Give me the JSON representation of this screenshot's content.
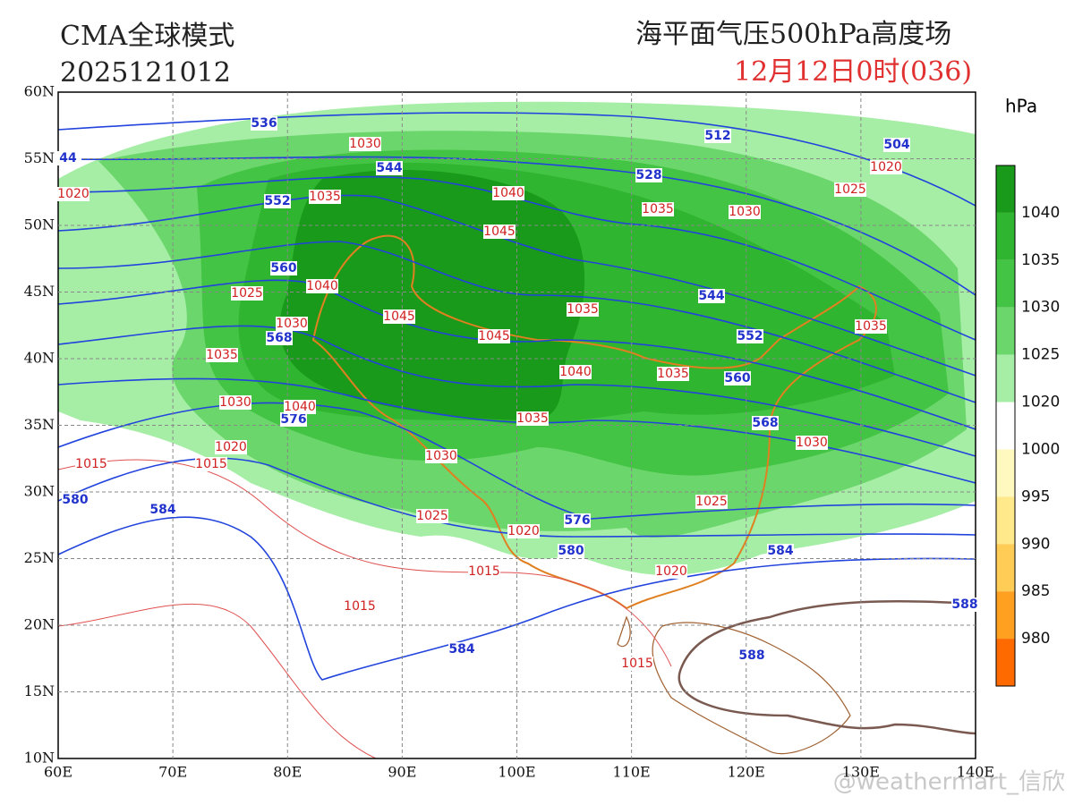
{
  "header": {
    "model": "CMA全球模式",
    "run": "2025121012",
    "title": "海平面气压500hPa高度场",
    "valid": "12月12日0时(036)"
  },
  "colorbar": {
    "unit": "hPa",
    "labels": [
      "1040",
      "1035",
      "1030",
      "1025",
      "1020",
      "1000",
      "995",
      "990",
      "985",
      "980"
    ]
  },
  "axes": {
    "lat_labels": [
      "60N",
      "55N",
      "50N",
      "45N",
      "40N",
      "35N",
      "30N",
      "25N",
      "20N",
      "15N",
      "10N"
    ],
    "lon_labels": [
      "60E",
      "70E",
      "80E",
      "90E",
      "100E",
      "110E",
      "120E",
      "130E",
      "140E"
    ]
  },
  "height_labels": [
    "536",
    "544",
    "552",
    "560",
    "568",
    "576",
    "580",
    "584",
    "512",
    "504",
    "528",
    "544",
    "552",
    "560",
    "568",
    "576",
    "580",
    "584",
    "584",
    "588",
    "588",
    "44"
  ],
  "pressure_labels": [
    "1030",
    "1035",
    "1040",
    "1045",
    "1035",
    "1030",
    "1025",
    "1020",
    "1020",
    "1040",
    "1025",
    "1030",
    "1045",
    "1035",
    "1045",
    "1035",
    "1035",
    "1040",
    "1035",
    "1030",
    "1040",
    "1035",
    "1030",
    "1020",
    "1015",
    "1015",
    "1030",
    "1025",
    "1020",
    "1025",
    "1015",
    "1020",
    "1015",
    "1015"
  ],
  "watermark": "@weathermart_信欣"
}
